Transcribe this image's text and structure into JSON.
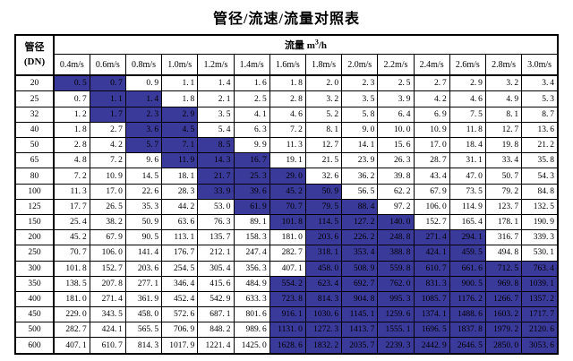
{
  "title": "管径/流速/流量对照表",
  "colors": {
    "highlight": "#3A3A9B",
    "border": "#000000",
    "background": "#FFFFFF"
  },
  "table": {
    "corner_header": {
      "line1": "管径",
      "line2": "(DN)"
    },
    "flow_header": {
      "label": "流量",
      "unit_base": "m",
      "unit_sup": "3",
      "unit_rest": "/h"
    },
    "velocity_headers": [
      "0.4m/s",
      "0.6m/s",
      "0.8m/s",
      "1.0m/s",
      "1.2m/s",
      "1.4m/s",
      "1.6m/s",
      "1.8m/s",
      "2.0m/s",
      "2.2m/s",
      "2.4m/s",
      "2.6m/s",
      "2.8m/s",
      "3.0m/s"
    ],
    "rows": [
      {
        "dn": "20",
        "values": [
          "0.5",
          "0.7",
          "0.9",
          "1.1",
          "1.4",
          "1.6",
          "1.8",
          "2.0",
          "2.3",
          "2.5",
          "2.7",
          "2.9",
          "3.2",
          "3.4"
        ],
        "highlighted_columns": [
          0,
          1
        ]
      },
      {
        "dn": "25",
        "values": [
          "0.7",
          "1.1",
          "1.4",
          "1.8",
          "2.1",
          "2.5",
          "2.8",
          "3.2",
          "3.5",
          "3.9",
          "4.2",
          "4.6",
          "4.9",
          "5.3"
        ],
        "highlighted_columns": [
          1,
          2
        ]
      },
      {
        "dn": "32",
        "values": [
          "1.2",
          "1.7",
          "2.3",
          "2.9",
          "3.5",
          "4.1",
          "4.6",
          "5.2",
          "5.8",
          "6.4",
          "6.9",
          "7.5",
          "8.1",
          "8.7"
        ],
        "highlighted_columns": [
          1,
          2,
          3
        ]
      },
      {
        "dn": "40",
        "values": [
          "1.8",
          "2.7",
          "3.6",
          "4.5",
          "5.4",
          "6.3",
          "7.2",
          "8.1",
          "9.0",
          "10.0",
          "10.9",
          "11.8",
          "12.7",
          "13.6"
        ],
        "highlighted_columns": [
          2,
          3
        ]
      },
      {
        "dn": "50",
        "values": [
          "2.8",
          "4.2",
          "5.7",
          "7.1",
          "8.5",
          "9.9",
          "11.3",
          "12.7",
          "14.1",
          "15.6",
          "17.0",
          "18.4",
          "19.8",
          "21.2"
        ],
        "highlighted_columns": [
          2,
          3,
          4
        ]
      },
      {
        "dn": "65",
        "values": [
          "4.8",
          "7.2",
          "9.6",
          "11.9",
          "14.3",
          "16.7",
          "19.1",
          "21.5",
          "23.9",
          "26.3",
          "28.7",
          "31.1",
          "33.4",
          "35.8"
        ],
        "highlighted_columns": [
          3,
          4,
          5
        ]
      },
      {
        "dn": "80",
        "values": [
          "7.2",
          "10.9",
          "14.5",
          "18.1",
          "21.7",
          "25.3",
          "29.0",
          "32.6",
          "36.2",
          "39.8",
          "43.4",
          "47.0",
          "50.7",
          "54.3"
        ],
        "highlighted_columns": [
          4,
          5,
          6
        ]
      },
      {
        "dn": "100",
        "values": [
          "11.3",
          "17.0",
          "22.6",
          "28.3",
          "33.9",
          "39.6",
          "45.2",
          "50.9",
          "56.5",
          "62.2",
          "67.9",
          "73.5",
          "79.2",
          "84.8"
        ],
        "highlighted_columns": [
          4,
          5,
          6,
          7
        ]
      },
      {
        "dn": "125",
        "values": [
          "17.7",
          "26.5",
          "35.3",
          "44.2",
          "53.0",
          "61.9",
          "70.7",
          "79.5",
          "88.4",
          "97.2",
          "106.0",
          "114.9",
          "123.7",
          "132.5"
        ],
        "highlighted_columns": [
          5,
          6,
          7,
          8
        ]
      },
      {
        "dn": "150",
        "values": [
          "25.4",
          "38.2",
          "50.9",
          "63.6",
          "76.3",
          "89.1",
          "101.8",
          "114.5",
          "127.2",
          "140.0",
          "152.7",
          "165.4",
          "178.1",
          "190.9"
        ],
        "highlighted_columns": [
          6,
          7,
          8,
          9
        ]
      },
      {
        "dn": "200",
        "values": [
          "45.2",
          "67.9",
          "90.5",
          "113.1",
          "135.7",
          "158.3",
          "181.0",
          "203.6",
          "226.2",
          "248.8",
          "271.4",
          "294.1",
          "316.7",
          "339.3"
        ],
        "highlighted_columns": [
          7,
          8,
          9,
          10,
          11
        ]
      },
      {
        "dn": "250",
        "values": [
          "70.7",
          "106.0",
          "141.4",
          "176.7",
          "212.1",
          "247.4",
          "282.7",
          "318.1",
          "353.4",
          "388.8",
          "424.1",
          "459.5",
          "494.8",
          "530.1"
        ],
        "highlighted_columns": [
          7,
          8,
          9,
          10,
          11
        ]
      },
      {
        "dn": "300",
        "values": [
          "101.8",
          "152.7",
          "203.6",
          "254.5",
          "305.4",
          "356.3",
          "407.1",
          "458.0",
          "508.9",
          "559.8",
          "610.7",
          "661.6",
          "712.5",
          "763.4"
        ],
        "highlighted_columns": [
          7,
          8,
          9,
          10,
          11,
          12,
          13
        ]
      },
      {
        "dn": "350",
        "values": [
          "138.5",
          "207.8",
          "277.1",
          "346.4",
          "415.6",
          "484.9",
          "554.2",
          "623.4",
          "692.7",
          "762.0",
          "831.3",
          "900.5",
          "969.8",
          "1039.1"
        ],
        "highlighted_columns": [
          6,
          7,
          8,
          9,
          10,
          11,
          12,
          13
        ]
      },
      {
        "dn": "400",
        "values": [
          "181.0",
          "271.4",
          "361.9",
          "452.4",
          "542.9",
          "633.3",
          "723.8",
          "814.3",
          "904.8",
          "995.3",
          "1085.7",
          "1176.2",
          "1266.7",
          "1357.2"
        ],
        "highlighted_columns": [
          6,
          7,
          8,
          9,
          10,
          11,
          12,
          13
        ]
      },
      {
        "dn": "450",
        "values": [
          "229.0",
          "343.5",
          "458.0",
          "572.6",
          "687.1",
          "801.6",
          "916.1",
          "1030.6",
          "1145.1",
          "1259.6",
          "1374.1",
          "1488.6",
          "1603.2",
          "1717.7"
        ],
        "highlighted_columns": [
          6,
          7,
          8,
          9,
          10,
          11,
          12,
          13
        ]
      },
      {
        "dn": "500",
        "values": [
          "282.7",
          "424.1",
          "565.5",
          "706.9",
          "848.2",
          "989.6",
          "1131.0",
          "1272.3",
          "1413.7",
          "1555.1",
          "1696.5",
          "1837.8",
          "1979.2",
          "2120.6"
        ],
        "highlighted_columns": [
          6,
          7,
          8,
          9,
          10,
          11,
          12,
          13
        ]
      },
      {
        "dn": "600",
        "values": [
          "407.1",
          "610.7",
          "814.3",
          "1017.9",
          "1221.4",
          "1425.0",
          "1628.6",
          "1832.2",
          "2035.7",
          "2239.3",
          "2442.9",
          "2646.5",
          "2850.0",
          "3053.6"
        ],
        "highlighted_columns": [
          6,
          7,
          8,
          9,
          10,
          11,
          12,
          13
        ]
      }
    ]
  }
}
